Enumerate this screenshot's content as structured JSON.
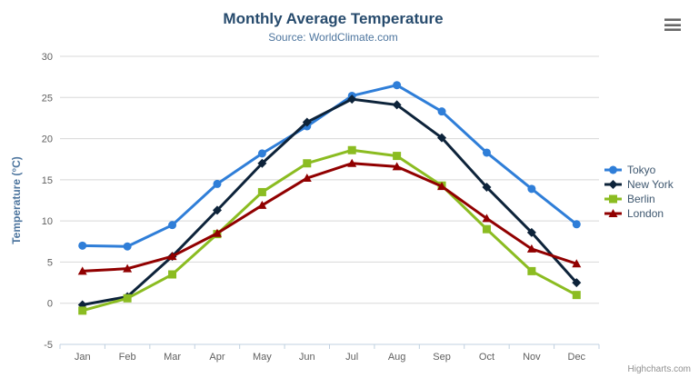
{
  "header": {
    "title": "Monthly Average Temperature",
    "subtitle": "Source: WorldClimate.com"
  },
  "export_menu": {
    "icon": "hamburger-menu-icon"
  },
  "credits": {
    "label": "Highcharts.com"
  },
  "colors": {
    "title_text": "#274b6d",
    "subtitle_text": "#4d759e",
    "axis_label_text": "#606060",
    "axis_title_text": "#4d759e",
    "grid_line": "#d8d8d8",
    "axis_line": "#c0d0e0",
    "legend_text": "#3e576f",
    "credits_text": "#909090",
    "menu_icon": "#666666"
  },
  "chart_data": {
    "type": "line",
    "title": "Monthly Average Temperature",
    "subtitle": "Source: WorldClimate.com",
    "categories": [
      "Jan",
      "Feb",
      "Mar",
      "Apr",
      "May",
      "Jun",
      "Jul",
      "Aug",
      "Sep",
      "Oct",
      "Nov",
      "Dec"
    ],
    "series": [
      {
        "name": "Tokyo",
        "color": "#2f7ed8",
        "symbol": "circle",
        "values": [
          7.0,
          6.9,
          9.5,
          14.5,
          18.2,
          21.5,
          25.2,
          26.5,
          23.3,
          18.3,
          13.9,
          9.6
        ]
      },
      {
        "name": "New York",
        "color": "#0d233a",
        "symbol": "diamond",
        "values": [
          -0.2,
          0.8,
          5.7,
          11.3,
          17.0,
          22.0,
          24.8,
          24.1,
          20.1,
          14.1,
          8.6,
          2.5
        ]
      },
      {
        "name": "Berlin",
        "color": "#8bbc21",
        "symbol": "square",
        "values": [
          -0.9,
          0.6,
          3.5,
          8.4,
          13.5,
          17.0,
          18.6,
          17.9,
          14.3,
          9.0,
          3.9,
          1.0
        ]
      },
      {
        "name": "London",
        "color": "#910000",
        "symbol": "triangle",
        "values": [
          3.9,
          4.2,
          5.7,
          8.5,
          11.9,
          15.2,
          17.0,
          16.6,
          14.2,
          10.3,
          6.6,
          4.8
        ]
      }
    ],
    "xlabel": "",
    "ylabel": "Temperature (°C)",
    "ylim": [
      -5,
      30
    ],
    "yticks": [
      -5,
      0,
      5,
      10,
      15,
      20,
      25,
      30
    ],
    "grid": true,
    "legend_position": "right"
  }
}
